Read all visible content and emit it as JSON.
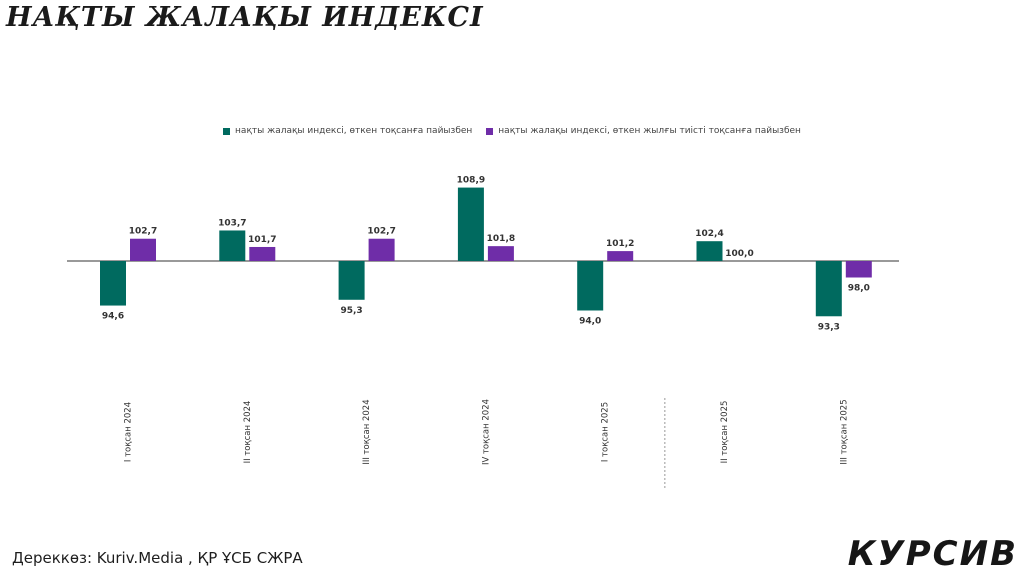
{
  "title": "НАҚТЫ ЖАЛАҚЫ ИНДЕКСІ",
  "source": "Дереккөз: Kuriv.Media , ҚР ҰСБ СЖРА",
  "brand": "КУРСИВ",
  "colors": {
    "series1": "#006a5f",
    "series2": "#6f2da8",
    "axis": "#333333",
    "divider": "#999999"
  },
  "chart_data": {
    "type": "bar",
    "baseline": 100,
    "categories": [
      "I тоқсан 2024",
      "II тоқсан 2024",
      "III тоқсан 2024",
      "IV тоқсан 2024",
      "I тоқсан 2025",
      "II тоқсан 2025",
      "III тоқсан 2025"
    ],
    "series": [
      {
        "name": "нақты жалақы индексі, өткен тоқсанға пайызбен",
        "values": [
          94.6,
          103.7,
          95.3,
          108.9,
          94.0,
          102.4,
          93.3
        ],
        "labels": [
          "94,6",
          "103,7",
          "95,3",
          "108,9",
          "94,0",
          "102,4",
          "93,3"
        ]
      },
      {
        "name": "нақты жалақы индексі, өткен жылғы тиісті тоқсанға пайызбен",
        "values": [
          102.7,
          101.7,
          102.7,
          101.8,
          101.2,
          100.0,
          98.0
        ],
        "labels": [
          "102,7",
          "101,7",
          "102,7",
          "101,8",
          "101,2",
          "100,0",
          "98,0"
        ]
      }
    ],
    "legend_position": "top",
    "grid": false,
    "divider_after_category": 4
  }
}
